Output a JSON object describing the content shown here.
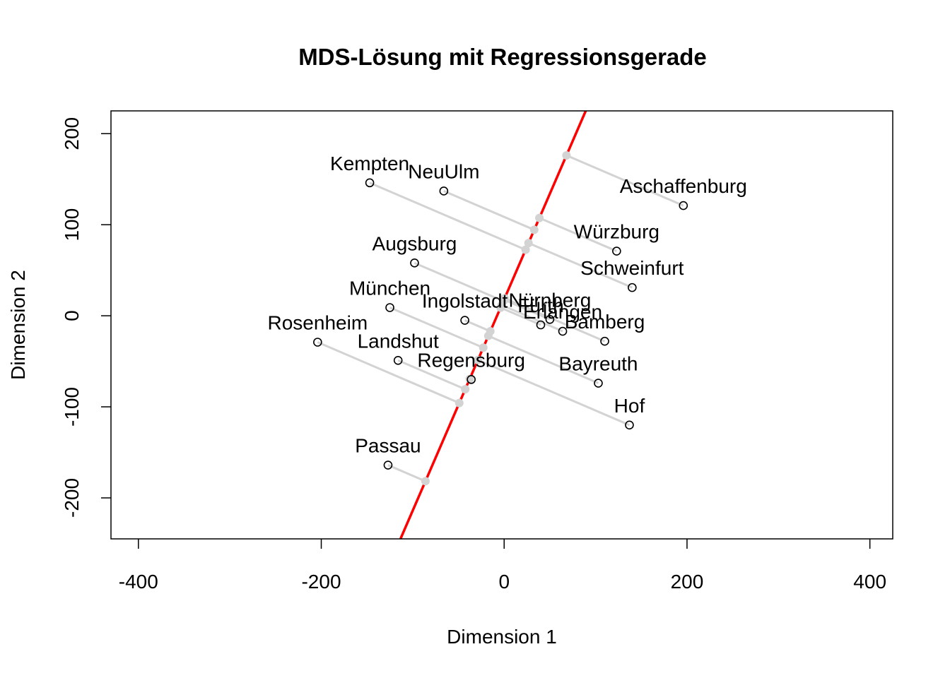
{
  "chart_data": {
    "type": "scatter",
    "title": "MDS-Lösung mit Regressionsgerade",
    "xlabel": "Dimension 1",
    "ylabel": "Dimension 2",
    "xlim": [
      -430,
      425
    ],
    "ylim": [
      -245,
      225
    ],
    "x_ticks": [
      -400,
      -200,
      0,
      200,
      400
    ],
    "y_ticks": [
      -200,
      -100,
      0,
      100,
      200
    ],
    "x_tick_labels": [
      "-400",
      "-200",
      "0",
      "200",
      "400"
    ],
    "y_tick_labels": [
      "-200",
      "-100",
      "0",
      "100",
      "200"
    ],
    "grid": false,
    "regression_line": {
      "slope": 2.32,
      "intercept": 18,
      "color": "#ff0000"
    },
    "projection_color": "#d3d3d3",
    "points": [
      {
        "name": "Kempten",
        "x": -147,
        "y": 146
      },
      {
        "name": "NeuUlm",
        "x": -66,
        "y": 137
      },
      {
        "name": "Aschaffenburg",
        "x": 196,
        "y": 121
      },
      {
        "name": "Würzburg",
        "x": 123,
        "y": 71
      },
      {
        "name": "Augsburg",
        "x": -98,
        "y": 58
      },
      {
        "name": "Schweinfurt",
        "x": 140,
        "y": 31
      },
      {
        "name": "München",
        "x": -125,
        "y": 9
      },
      {
        "name": "Ingolstadt",
        "x": -43,
        "y": -5
      },
      {
        "name": "Fürth",
        "x": 40,
        "y": -10
      },
      {
        "name": "Nürnberg",
        "x": 50,
        "y": -4
      },
      {
        "name": "Erlangen",
        "x": 64,
        "y": -17
      },
      {
        "name": "Bamberg",
        "x": 110,
        "y": -28
      },
      {
        "name": "Rosenheim",
        "x": -204,
        "y": -29
      },
      {
        "name": "Landshut",
        "x": -116,
        "y": -49
      },
      {
        "name": "Regensburg",
        "x": -36,
        "y": -70
      },
      {
        "name": "Bayreuth",
        "x": 103,
        "y": -74
      },
      {
        "name": "Hof",
        "x": 137,
        "y": -120
      },
      {
        "name": "Passau",
        "x": -127,
        "y": -164
      }
    ]
  }
}
